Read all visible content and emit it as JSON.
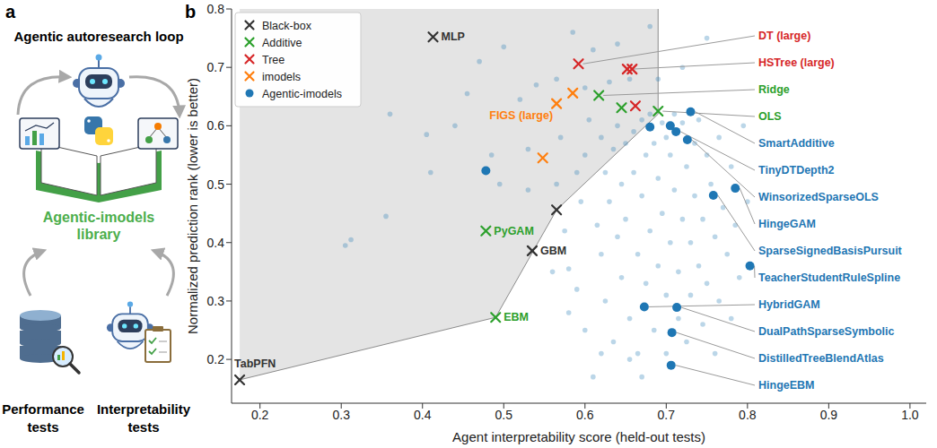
{
  "panel_a": {
    "letter": "a",
    "title": "Agentic autoresearch loop",
    "library": "Agentic-imodels library",
    "left_label": "Performance tests",
    "right_label": "Interpretability tests"
  },
  "panel_b": {
    "letter": "b"
  },
  "chart_data": {
    "type": "scatter",
    "x_label": "Agent interpretability score (held-out tests)",
    "y_label": "Normalized prediction rank (lower is better)",
    "xlim": [
      0.165,
      1.02
    ],
    "ylim": [
      0.125,
      0.8
    ],
    "xticks": [
      0.2,
      0.3,
      0.4,
      0.5,
      0.6,
      0.7,
      0.8,
      0.9,
      {
        "value": 1.0,
        "label": "1.0"
      }
    ],
    "yticks": [
      0.2,
      0.3,
      0.4,
      0.5,
      0.6,
      0.7,
      0.8
    ],
    "grid": false,
    "legend": "upper left",
    "frontier": {
      "x": [
        0.175,
        0.49,
        0.565,
        0.69,
        0.69
      ],
      "y": [
        0.165,
        0.272,
        0.456,
        0.62,
        0.8
      ]
    },
    "series": [
      {
        "name": "Black-box",
        "color": "#333333",
        "marker": "x",
        "x": [
          0.413,
          0.175,
          0.535,
          0.565
        ],
        "y": [
          0.752,
          0.165,
          0.386,
          0.456
        ],
        "labels": [
          "MLP",
          "TabPFN",
          "GBM",
          null
        ]
      },
      {
        "name": "Additive",
        "color": "#2ca02c",
        "marker": "x",
        "x": [
          0.478,
          0.49,
          0.617,
          0.645,
          0.69
        ],
        "y": [
          0.42,
          0.272,
          0.652,
          0.631,
          0.625
        ],
        "labels": [
          "PyGAM",
          "EBM",
          "Ridge",
          null,
          "OLS"
        ]
      },
      {
        "name": "Tree",
        "color": "#d62728",
        "marker": "x",
        "x": [
          0.592,
          0.652,
          0.658,
          0.662
        ],
        "y": [
          0.706,
          0.697,
          0.697,
          0.634
        ],
        "labels": [
          "DT (large)",
          "HSTree (large)",
          null,
          null
        ]
      },
      {
        "name": "imodels",
        "color": "#ff7f0e",
        "marker": "x",
        "x": [
          0.565,
          0.585,
          0.548
        ],
        "y": [
          0.638,
          0.656,
          0.545
        ],
        "labels": [
          "FIGS (large)",
          null,
          null
        ]
      },
      {
        "name": "Agentic-imodels",
        "color": "#1f77b4",
        "marker": "circle",
        "x": [
          0.73,
          0.712,
          0.726,
          0.785,
          0.758,
          0.803,
          0.673,
          0.713,
          0.707,
          0.706,
          0.705,
          0.68,
          0.478
        ],
        "y": [
          0.624,
          0.59,
          0.576,
          0.493,
          0.481,
          0.36,
          0.29,
          0.289,
          0.246,
          0.19,
          0.6,
          0.598,
          0.523
        ],
        "labels": [
          "SmartAdditive",
          "TinyDTDepth2",
          "WinsorizedSparseOLS",
          "HingeGAM",
          "SparseSignedBasisPursuit",
          "TeacherStudentRuleSpline",
          "HybridGAM",
          "DualPathSparseSymbolic",
          "DistilledTreeBlendAtlas",
          "HingeEBM",
          null,
          null,
          null
        ],
        "candidates": {
          "x": [
            0.305,
            0.312,
            0.355,
            0.36,
            0.405,
            0.41,
            0.44,
            0.455,
            0.47,
            0.485,
            0.495,
            0.5,
            0.52,
            0.53,
            0.53,
            0.565,
            0.57,
            0.575,
            0.58,
            0.585,
            0.59,
            0.595,
            0.6,
            0.6,
            0.605,
            0.61,
            0.615,
            0.62,
            0.62,
            0.625,
            0.625,
            0.63,
            0.63,
            0.635,
            0.635,
            0.64,
            0.64,
            0.645,
            0.645,
            0.65,
            0.65,
            0.655,
            0.655,
            0.66,
            0.66,
            0.665,
            0.665,
            0.67,
            0.67,
            0.675,
            0.675,
            0.68,
            0.68,
            0.685,
            0.685,
            0.69,
            0.69,
            0.695,
            0.695,
            0.7,
            0.7,
            0.7,
            0.705,
            0.705,
            0.71,
            0.71,
            0.715,
            0.715,
            0.72,
            0.72,
            0.725,
            0.725,
            0.73,
            0.73,
            0.735,
            0.735,
            0.74,
            0.74,
            0.745,
            0.745,
            0.75,
            0.75,
            0.755,
            0.76,
            0.76,
            0.765,
            0.765,
            0.77,
            0.775,
            0.78,
            0.78,
            0.785,
            0.79,
            0.795,
            0.8,
            0.655,
            0.61,
            0.69,
            0.72,
            0.75,
            0.68,
            0.64,
            0.565,
            0.54,
            0.6,
            0.59,
            0.56,
            0.62,
            0.58,
            0.67
          ],
          "y": [
            0.395,
            0.405,
            0.445,
            0.62,
            0.585,
            0.52,
            0.6,
            0.655,
            0.71,
            0.55,
            0.5,
            0.735,
            0.645,
            0.49,
            0.56,
            0.5,
            0.58,
            0.42,
            0.355,
            0.76,
            0.32,
            0.47,
            0.55,
            0.25,
            0.61,
            0.73,
            0.43,
            0.58,
            0.38,
            0.52,
            0.3,
            0.675,
            0.47,
            0.56,
            0.23,
            0.6,
            0.41,
            0.5,
            0.34,
            0.57,
            0.44,
            0.68,
            0.27,
            0.59,
            0.52,
            0.38,
            0.21,
            0.61,
            0.48,
            0.55,
            0.33,
            0.62,
            0.42,
            0.57,
            0.25,
            0.51,
            0.36,
            0.605,
            0.45,
            0.58,
            0.31,
            0.21,
            0.55,
            0.4,
            0.62,
            0.49,
            0.35,
            0.27,
            0.605,
            0.44,
            0.53,
            0.23,
            0.4,
            0.31,
            0.57,
            0.48,
            0.61,
            0.36,
            0.44,
            0.26,
            0.55,
            0.33,
            0.5,
            0.41,
            0.21,
            0.58,
            0.3,
            0.46,
            0.38,
            0.53,
            0.27,
            0.43,
            0.34,
            0.6,
            0.47,
            0.2,
            0.17,
            0.68,
            0.7,
            0.75,
            0.77,
            0.74,
            0.68,
            0.67,
            0.665,
            0.52,
            0.35,
            0.21,
            0.28,
            0.17
          ]
        }
      }
    ]
  }
}
